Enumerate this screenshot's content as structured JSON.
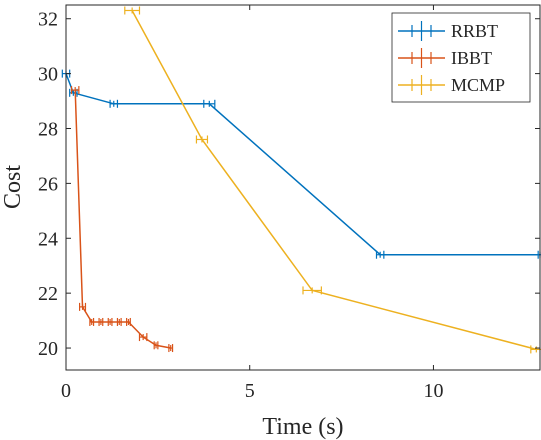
{
  "chart_data": {
    "type": "line",
    "title": "",
    "xlabel": "Time (s)",
    "ylabel": "Cost",
    "xlim": [
      0,
      12.9
    ],
    "ylim": [
      19.2,
      32.5
    ],
    "xticks": [
      0,
      5,
      10
    ],
    "yticks": [
      20,
      22,
      24,
      26,
      28,
      30,
      32
    ],
    "legend_position": "top-right",
    "series": [
      {
        "name": "RRBT",
        "color": "#0072BD",
        "points": [
          {
            "x": 0.0,
            "y": 30.0,
            "xerr": 0.1
          },
          {
            "x": 0.2,
            "y": 29.3,
            "xerr": 0.1
          },
          {
            "x": 1.3,
            "y": 28.9,
            "xerr": 0.1
          },
          {
            "x": 3.9,
            "y": 28.9,
            "xerr": 0.15
          },
          {
            "x": 8.55,
            "y": 23.4,
            "xerr": 0.1
          },
          {
            "x": 12.9,
            "y": 23.4,
            "xerr": 0.05
          }
        ]
      },
      {
        "name": "IBBT",
        "color": "#D95319",
        "points": [
          {
            "x": 0.25,
            "y": 29.4,
            "xerr": 0.1
          },
          {
            "x": 0.45,
            "y": 21.5,
            "xerr": 0.08
          },
          {
            "x": 0.7,
            "y": 20.95,
            "xerr": 0.05
          },
          {
            "x": 0.95,
            "y": 20.95,
            "xerr": 0.05
          },
          {
            "x": 1.2,
            "y": 20.95,
            "xerr": 0.05
          },
          {
            "x": 1.45,
            "y": 20.95,
            "xerr": 0.05
          },
          {
            "x": 1.7,
            "y": 20.95,
            "xerr": 0.05
          },
          {
            "x": 2.1,
            "y": 20.4,
            "xerr": 0.1
          },
          {
            "x": 2.45,
            "y": 20.1,
            "xerr": 0.05
          },
          {
            "x": 2.85,
            "y": 20.0,
            "xerr": 0.05
          }
        ]
      },
      {
        "name": "MCMP",
        "color": "#EDB120",
        "points": [
          {
            "x": 1.8,
            "y": 32.3,
            "xerr": 0.2
          },
          {
            "x": 3.7,
            "y": 27.6,
            "xerr": 0.15
          },
          {
            "x": 6.7,
            "y": 22.1,
            "xerr": 0.25
          },
          {
            "x": 12.8,
            "y": 19.95,
            "xerr": 0.15
          }
        ]
      }
    ]
  }
}
